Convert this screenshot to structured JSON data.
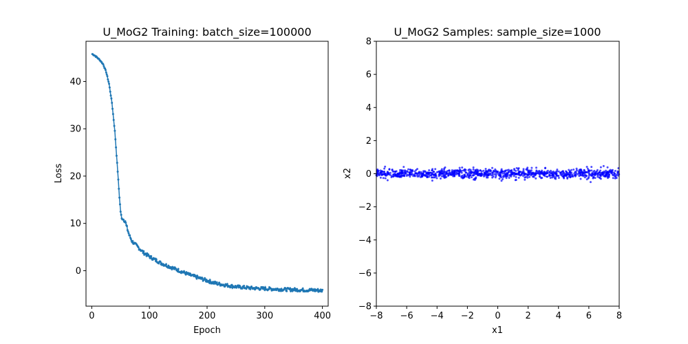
{
  "chart_data": [
    {
      "type": "line",
      "title": "U_MoG2 Training: batch_size=100000",
      "xlabel": "Epoch",
      "ylabel": "Loss",
      "xlim": [
        -10,
        410
      ],
      "ylim": [
        -7.5,
        48.5
      ],
      "xticks": [
        0,
        100,
        200,
        300,
        400
      ],
      "yticks": [
        0,
        10,
        20,
        30,
        40
      ],
      "grid": false,
      "marker": "dot",
      "color": "#1f77b4",
      "series": [
        {
          "x": [
            1,
            5,
            10,
            15,
            20,
            25,
            30,
            35,
            40,
            45,
            48,
            50,
            52,
            55,
            58,
            60,
            65,
            70,
            80,
            90,
            100,
            110,
            120,
            130,
            140,
            150,
            160,
            170,
            180,
            190,
            200,
            210,
            220,
            230,
            240,
            250,
            260,
            270,
            280,
            290,
            300,
            310,
            320,
            330,
            340,
            350,
            360,
            370,
            380,
            390,
            400
          ],
          "y": [
            45.8,
            45.5,
            45.0,
            44.4,
            43.6,
            42.0,
            39.5,
            35.5,
            29.5,
            21.0,
            15.5,
            12.5,
            11.0,
            10.8,
            10.5,
            9.5,
            7.5,
            6.2,
            5.0,
            3.8,
            3.0,
            2.3,
            1.6,
            1.1,
            0.6,
            0.1,
            -0.4,
            -0.9,
            -1.3,
            -1.7,
            -2.1,
            -2.5,
            -2.8,
            -3.0,
            -3.2,
            -3.4,
            -3.5,
            -3.6,
            -3.7,
            -3.75,
            -3.8,
            -3.85,
            -3.9,
            -3.95,
            -4.0,
            -4.0,
            -4.05,
            -4.1,
            -4.1,
            -4.15,
            -4.2
          ]
        }
      ]
    },
    {
      "type": "scatter",
      "title": "U_MoG2 Samples: sample_size=1000",
      "xlabel": "x1",
      "ylabel": "x2",
      "xlim": [
        -8,
        8
      ],
      "ylim": [
        -8,
        8
      ],
      "xticks": [
        -8,
        -6,
        -4,
        -2,
        0,
        2,
        4,
        6,
        8
      ],
      "yticks": [
        -8,
        -6,
        -4,
        -2,
        0,
        2,
        4,
        6,
        8
      ],
      "grid": false,
      "color": "#0000ff",
      "series": [
        {
          "x_range": [
            -8,
            8
          ],
          "y_mean": 0,
          "y_spread": 0.15,
          "count": 1000
        }
      ]
    }
  ]
}
